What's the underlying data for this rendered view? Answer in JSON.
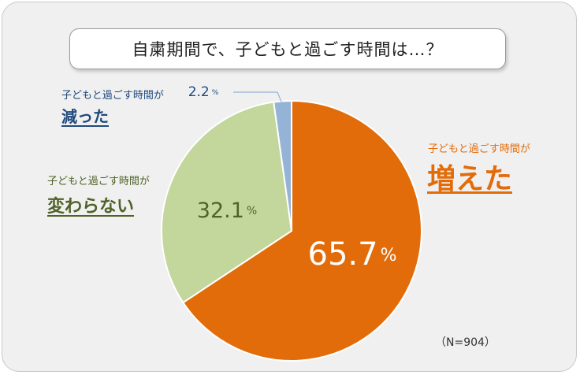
{
  "title": "自粛期間で、子どもと過ごす時間は…？",
  "sample_note": "（N=904）",
  "chart_data": {
    "type": "pie",
    "title": "自粛期間で、子どもと過ごす時間は…？",
    "slices": [
      {
        "prefix": "子どもと過ごす時間が",
        "name": "増えた",
        "value": 65.7,
        "label": "65.7",
        "color": "#e36c0a",
        "label_color": "#ffffff",
        "name_color": "#e36c0a"
      },
      {
        "prefix": "子どもと過ごす時間が",
        "name": "変わらない",
        "value": 32.1,
        "label": "32.1",
        "color": "#c3d69b",
        "label_color": "#4f6228",
        "name_color": "#4f6228"
      },
      {
        "prefix": "子どもと過ごす時間が",
        "name": "減った",
        "value": 2.2,
        "label": "2.2",
        "color": "#95b3d7",
        "label_color": "#1f497d",
        "name_color": "#1f497d"
      }
    ],
    "unit": "%",
    "n": 904
  }
}
